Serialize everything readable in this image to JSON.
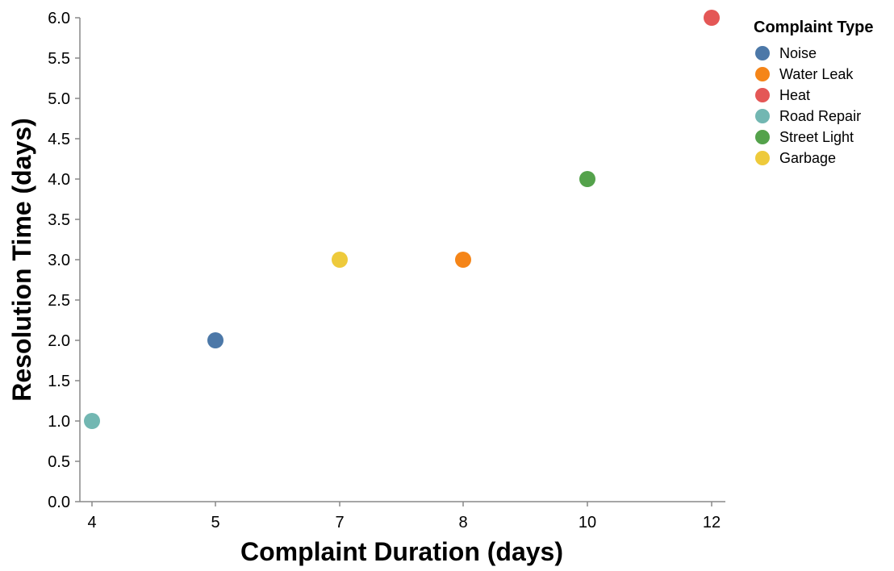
{
  "chart_data": {
    "type": "scatter",
    "title": "",
    "xlabel": "Complaint Duration (days)",
    "ylabel": "Resolution Time (days)",
    "x_ticks": [
      4,
      5,
      7,
      8,
      10,
      12
    ],
    "y_ticks": [
      "0.0",
      "0.5",
      "1.0",
      "1.5",
      "2.0",
      "2.5",
      "3.0",
      "3.5",
      "4.0",
      "4.5",
      "5.0",
      "5.5",
      "6.0"
    ],
    "ylim": [
      0,
      6
    ],
    "grid": false,
    "legend": {
      "title": "Complaint Type",
      "placement": "top-right",
      "entries": [
        {
          "label": "Noise",
          "color": "#4c78a8"
        },
        {
          "label": "Water Leak",
          "color": "#f58518"
        },
        {
          "label": "Heat",
          "color": "#e45756"
        },
        {
          "label": "Road Repair",
          "color": "#72b7b2"
        },
        {
          "label": "Street Light",
          "color": "#54a24b"
        },
        {
          "label": "Garbage",
          "color": "#eeca3b"
        }
      ]
    },
    "points": [
      {
        "category": "Noise",
        "x": 5,
        "y": 2
      },
      {
        "category": "Water Leak",
        "x": 8,
        "y": 3
      },
      {
        "category": "Heat",
        "x": 12,
        "y": 6
      },
      {
        "category": "Road Repair",
        "x": 4,
        "y": 1
      },
      {
        "category": "Street Light",
        "x": 10,
        "y": 4
      },
      {
        "category": "Garbage",
        "x": 7,
        "y": 3
      }
    ]
  }
}
